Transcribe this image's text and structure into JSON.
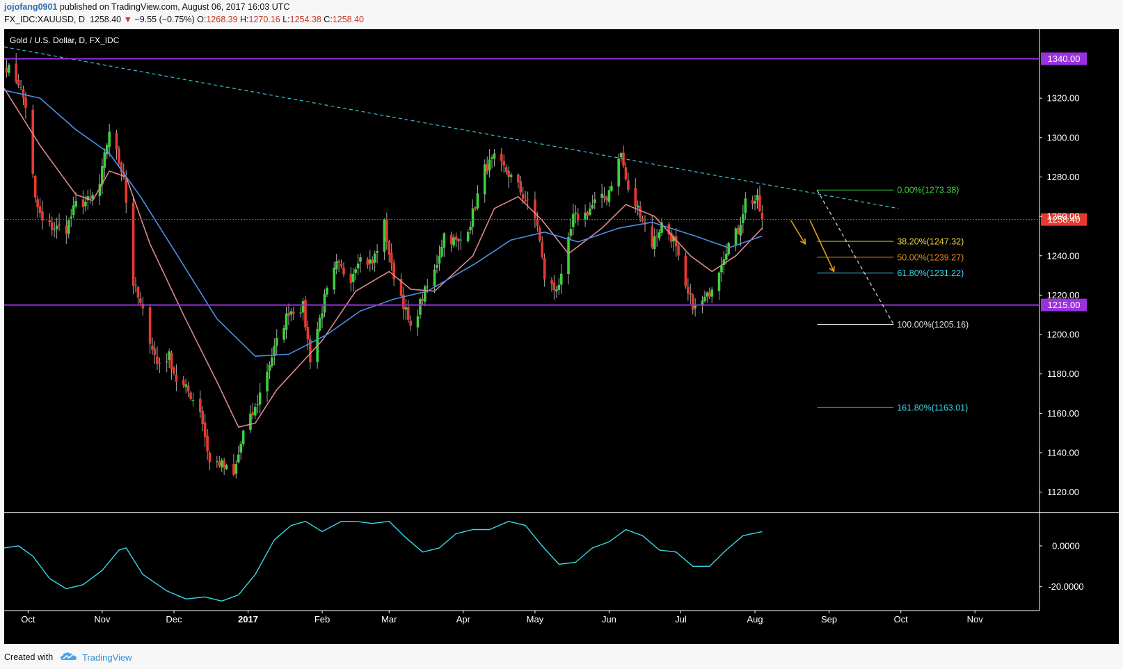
{
  "header": {
    "author": "jojofang0901",
    "published": "published on TradingView.com, August 06, 2017 16:03 UTC",
    "symbol": "FX_IDC:XAUUSD, D",
    "price": "1258.40",
    "change_arrow": "▼",
    "change": "−9.55 (−0.75%)",
    "o_label": "O:",
    "o_value": "1268.39",
    "h_label": "H:",
    "h_value": "1270.16",
    "l_label": "L:",
    "l_value": "1254.38",
    "c_label": "C:",
    "c_value": "1258.40"
  },
  "footer": {
    "created_with": "Created with",
    "brand": "TradingView",
    "logo_icon": "tradingview-cloud-icon"
  },
  "colors": {
    "background": "#000000",
    "up": "#3ecf3e",
    "down": "#e8392e",
    "ema_fast": "#e0888c",
    "ema_slow": "#4d8fe8",
    "trendline": "#3cc6d8",
    "level": "#9b30e0",
    "oscillator": "#38d8e8",
    "price_line": "#e8392e"
  },
  "chart_data": [
    {
      "type": "candlestick",
      "title": "Gold / U.S. Dollar, D, FX_IDC",
      "xlabel": "",
      "ylabel": "",
      "x_ticks": [
        "Oct",
        "Nov",
        "Dec",
        "2017",
        "Feb",
        "Mar",
        "Apr",
        "May",
        "Jun",
        "Jul",
        "Aug",
        "Sep",
        "Oct",
        "Nov"
      ],
      "y_ticks": [
        "1120.00",
        "1140.00",
        "1160.00",
        "1180.00",
        "1200.00",
        "1220.00",
        "1240.00",
        "1260.00",
        "1280.00",
        "1300.00",
        "1320.00"
      ],
      "ylim": [
        1110,
        1355
      ],
      "x_range": [
        "2016-09-21",
        "2017-11-28"
      ],
      "grid": false,
      "close_path": [
        [
          "2016-09-22",
          1336
        ],
        [
          "2016-09-27",
          1328
        ],
        [
          "2016-09-30",
          1316
        ],
        [
          "2016-10-04",
          1268
        ],
        [
          "2016-10-07",
          1257
        ],
        [
          "2016-10-12",
          1254
        ],
        [
          "2016-10-17",
          1254
        ],
        [
          "2016-10-21",
          1266
        ],
        [
          "2016-10-27",
          1268
        ],
        [
          "2016-10-31",
          1276
        ],
        [
          "2016-11-04",
          1304
        ],
        [
          "2016-11-08",
          1288
        ],
        [
          "2016-11-10",
          1281
        ],
        [
          "2016-11-14",
          1226
        ],
        [
          "2016-11-18",
          1211
        ],
        [
          "2016-11-24",
          1185
        ],
        [
          "2016-11-29",
          1189
        ],
        [
          "2016-12-02",
          1177
        ],
        [
          "2016-12-07",
          1171
        ],
        [
          "2016-12-12",
          1162
        ],
        [
          "2016-12-16",
          1135
        ],
        [
          "2016-12-20",
          1135
        ],
        [
          "2016-12-26",
          1128
        ],
        [
          "2016-12-30",
          1150
        ],
        [
          "2017-01-04",
          1162
        ],
        [
          "2017-01-09",
          1182
        ],
        [
          "2017-01-13",
          1196
        ],
        [
          "2017-01-18",
          1212
        ],
        [
          "2017-01-24",
          1214
        ],
        [
          "2017-01-27",
          1188
        ],
        [
          "2017-02-02",
          1218
        ],
        [
          "2017-02-07",
          1235
        ],
        [
          "2017-02-13",
          1229
        ],
        [
          "2017-02-16",
          1239
        ],
        [
          "2017-02-22",
          1236
        ],
        [
          "2017-02-27",
          1256
        ],
        [
          "2017-03-02",
          1234
        ],
        [
          "2017-03-07",
          1216
        ],
        [
          "2017-03-10",
          1202
        ],
        [
          "2017-03-15",
          1219
        ],
        [
          "2017-03-20",
          1232
        ],
        [
          "2017-03-24",
          1251
        ],
        [
          "2017-03-30",
          1246
        ],
        [
          "2017-04-04",
          1257
        ],
        [
          "2017-04-10",
          1284
        ],
        [
          "2017-04-14",
          1289
        ],
        [
          "2017-04-19",
          1283
        ],
        [
          "2017-04-24",
          1275
        ],
        [
          "2017-04-28",
          1266
        ],
        [
          "2017-05-02",
          1256
        ],
        [
          "2017-05-05",
          1229
        ],
        [
          "2017-05-09",
          1223
        ],
        [
          "2017-05-12",
          1228
        ],
        [
          "2017-05-17",
          1259
        ],
        [
          "2017-05-22",
          1261
        ],
        [
          "2017-05-26",
          1267
        ],
        [
          "2017-05-31",
          1270
        ],
        [
          "2017-06-06",
          1292
        ],
        [
          "2017-06-09",
          1272
        ],
        [
          "2017-06-14",
          1262
        ],
        [
          "2017-06-19",
          1246
        ],
        [
          "2017-06-23",
          1256
        ],
        [
          "2017-06-28",
          1248
        ],
        [
          "2017-07-03",
          1222
        ],
        [
          "2017-07-07",
          1213
        ],
        [
          "2017-07-12",
          1219
        ],
        [
          "2017-07-17",
          1234
        ],
        [
          "2017-07-20",
          1244
        ],
        [
          "2017-07-25",
          1253
        ],
        [
          "2017-07-28",
          1268
        ],
        [
          "2017-08-02",
          1268
        ],
        [
          "2017-08-04",
          1258.4
        ]
      ],
      "moving_averages": [
        {
          "color": "#e0888c",
          "points": [
            [
              "2016-09-21",
              1325
            ],
            [
              "2016-10-06",
              1296
            ],
            [
              "2016-10-21",
              1271
            ],
            [
              "2016-10-28",
              1268
            ],
            [
              "2016-11-04",
              1283
            ],
            [
              "2016-11-11",
              1280
            ],
            [
              "2016-11-21",
              1246
            ],
            [
              "2016-12-05",
              1210
            ],
            [
              "2016-12-19",
              1176
            ],
            [
              "2016-12-28",
              1153
            ],
            [
              "2017-01-04",
              1155
            ],
            [
              "2017-01-13",
              1172
            ],
            [
              "2017-02-01",
              1197
            ],
            [
              "2017-02-15",
              1222
            ],
            [
              "2017-03-01",
              1232
            ],
            [
              "2017-03-10",
              1223
            ],
            [
              "2017-03-20",
              1222
            ],
            [
              "2017-04-05",
              1240
            ],
            [
              "2017-04-14",
              1264
            ],
            [
              "2017-04-24",
              1270
            ],
            [
              "2017-05-04",
              1258
            ],
            [
              "2017-05-15",
              1241
            ],
            [
              "2017-05-29",
              1254
            ],
            [
              "2017-06-08",
              1266
            ],
            [
              "2017-06-20",
              1260
            ],
            [
              "2017-07-05",
              1240
            ],
            [
              "2017-07-14",
              1232
            ],
            [
              "2017-07-24",
              1240
            ],
            [
              "2017-08-04",
              1254
            ]
          ]
        },
        {
          "color": "#4d8fe8",
          "points": [
            [
              "2016-09-21",
              1324
            ],
            [
              "2016-10-06",
              1320
            ],
            [
              "2016-10-21",
              1304
            ],
            [
              "2016-11-04",
              1292
            ],
            [
              "2016-11-17",
              1270
            ],
            [
              "2016-12-01",
              1243
            ],
            [
              "2016-12-19",
              1208
            ],
            [
              "2017-01-04",
              1189
            ],
            [
              "2017-01-18",
              1190
            ],
            [
              "2017-02-03",
              1200
            ],
            [
              "2017-02-17",
              1212
            ],
            [
              "2017-03-03",
              1218
            ],
            [
              "2017-03-17",
              1222
            ],
            [
              "2017-04-06",
              1236
            ],
            [
              "2017-04-21",
              1248
            ],
            [
              "2017-05-05",
              1252
            ],
            [
              "2017-05-19",
              1247
            ],
            [
              "2017-06-05",
              1254
            ],
            [
              "2017-06-19",
              1257
            ],
            [
              "2017-07-07",
              1250
            ],
            [
              "2017-07-21",
              1244
            ],
            [
              "2017-08-04",
              1250
            ]
          ]
        }
      ],
      "trendline": {
        "from": [
          "2016-09-21",
          1346
        ],
        "to": [
          "2017-09-30",
          1264
        ],
        "style": "dashed"
      },
      "horizontal_levels": [
        {
          "value": 1340.0,
          "label": "1340.00"
        },
        {
          "value": 1215.0,
          "label": "1215.00"
        }
      ],
      "last_price": {
        "value": 1258.4,
        "label": "1258.40"
      },
      "fibonacci": {
        "from_date": "2017-08-27",
        "to_date": "2017-09-28",
        "levels": [
          {
            "label": "0.00%(1273.38)",
            "value": 1273.38,
            "color": "#3ecf3e"
          },
          {
            "label": "38.20%(1247.32)",
            "value": 1247.32,
            "color": "#e8d33a"
          },
          {
            "label": "50.00%(1239.27)",
            "value": 1239.27,
            "color": "#e08a1a"
          },
          {
            "label": "61.80%(1231.22)",
            "value": 1231.22,
            "color": "#38d8e8"
          },
          {
            "label": "100.00%(1205.16)",
            "value": 1205.16,
            "color": "#dddddd"
          },
          {
            "label": "161.80%(1163.01)",
            "value": 1163.01,
            "color": "#38d8e8"
          }
        ],
        "projection": {
          "from": [
            "2017-08-27",
            1273.38
          ],
          "to": [
            "2017-09-28",
            1205.16
          ]
        }
      },
      "arrows": [
        {
          "from": [
            "2017-08-16",
            1258
          ],
          "to": [
            "2017-08-22",
            1246
          ],
          "color": "#e0a01a"
        },
        {
          "from": [
            "2017-08-24",
            1258
          ],
          "to": [
            "2017-09-03",
            1232
          ],
          "color": "#e0a01a"
        }
      ]
    },
    {
      "type": "line",
      "title": "",
      "xlabel": "",
      "ylabel": "",
      "y_ticks": [
        "0.0000",
        "-20.0000"
      ],
      "ylim": [
        -31,
        16
      ],
      "series": [
        {
          "values": [
            [
              "2016-09-21",
              -1
            ],
            [
              "2016-09-27",
              0
            ],
            [
              "2016-10-03",
              -5
            ],
            [
              "2016-10-10",
              -16
            ],
            [
              "2016-10-17",
              -21
            ],
            [
              "2016-10-24",
              -19
            ],
            [
              "2016-11-01",
              -12
            ],
            [
              "2016-11-08",
              -2
            ],
            [
              "2016-11-11",
              -1
            ],
            [
              "2016-11-18",
              -14
            ],
            [
              "2016-11-28",
              -22
            ],
            [
              "2016-12-06",
              -26
            ],
            [
              "2016-12-14",
              -25
            ],
            [
              "2016-12-21",
              -27
            ],
            [
              "2016-12-28",
              -24
            ],
            [
              "2017-01-04",
              -14
            ],
            [
              "2017-01-12",
              3
            ],
            [
              "2017-01-19",
              10
            ],
            [
              "2017-01-25",
              12
            ],
            [
              "2017-02-01",
              7
            ],
            [
              "2017-02-09",
              12
            ],
            [
              "2017-02-15",
              12
            ],
            [
              "2017-02-22",
              11
            ],
            [
              "2017-03-01",
              12
            ],
            [
              "2017-03-08",
              4
            ],
            [
              "2017-03-15",
              -3
            ],
            [
              "2017-03-22",
              -1
            ],
            [
              "2017-03-29",
              6
            ],
            [
              "2017-04-05",
              8
            ],
            [
              "2017-04-12",
              8
            ],
            [
              "2017-04-20",
              12
            ],
            [
              "2017-04-27",
              10
            ],
            [
              "2017-05-04",
              0
            ],
            [
              "2017-05-11",
              -9
            ],
            [
              "2017-05-18",
              -8
            ],
            [
              "2017-05-25",
              -1
            ],
            [
              "2017-06-01",
              2
            ],
            [
              "2017-06-08",
              8
            ],
            [
              "2017-06-15",
              5
            ],
            [
              "2017-06-22",
              -2
            ],
            [
              "2017-06-29",
              -3
            ],
            [
              "2017-07-06",
              -10
            ],
            [
              "2017-07-13",
              -10
            ],
            [
              "2017-07-20",
              -2
            ],
            [
              "2017-07-27",
              5
            ],
            [
              "2017-08-04",
              7
            ]
          ]
        }
      ]
    }
  ],
  "time_axis": [
    "Oct",
    "Nov",
    "Dec",
    "2017",
    "Feb",
    "Mar",
    "Apr",
    "May",
    "Jun",
    "Jul",
    "Aug",
    "Sep",
    "Oct",
    "Nov"
  ]
}
